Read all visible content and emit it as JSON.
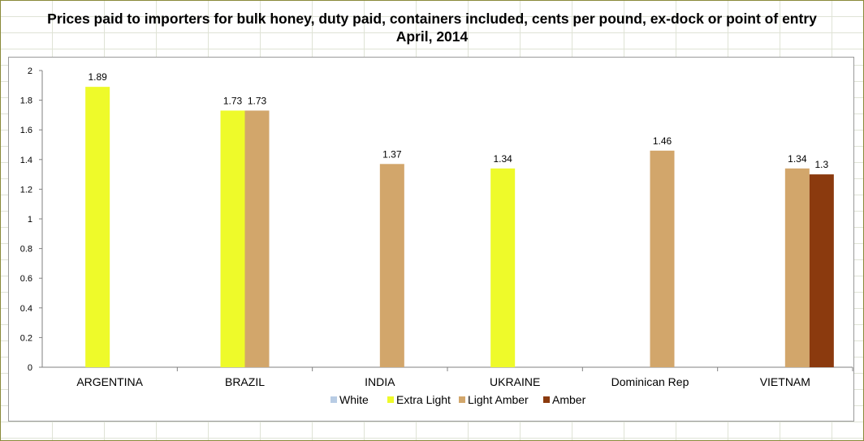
{
  "chart_data": {
    "type": "bar",
    "title_lines": [
      "Prices paid to importers for bulk honey, duty paid, containers included, cents per pound, ex-dock or point of entry",
      "April, 2014"
    ],
    "categories": [
      "ARGENTINA",
      "BRAZIL",
      "INDIA",
      "UKRAINE",
      "Dominican Rep",
      "VIETNAM"
    ],
    "series": [
      {
        "name": "White",
        "color": "#b8cce4",
        "values": [
          null,
          null,
          null,
          null,
          null,
          null
        ]
      },
      {
        "name": "Extra Light",
        "color": "#eefa2a",
        "values": [
          1.89,
          1.73,
          null,
          1.34,
          null,
          null
        ]
      },
      {
        "name": "Light Amber",
        "color": "#d2a66b",
        "values": [
          null,
          1.73,
          1.37,
          null,
          1.46,
          1.34
        ]
      },
      {
        "name": "Amber",
        "color": "#8b3a0e",
        "values": [
          null,
          null,
          null,
          null,
          null,
          1.3
        ]
      }
    ],
    "ylim": [
      0,
      2
    ],
    "yticks": [
      "0",
      "0.2",
      "0.4",
      "0.6",
      "0.8",
      "1",
      "1.2",
      "1.4",
      "1.6",
      "1.8",
      "2"
    ],
    "xlabel": "",
    "ylabel": "",
    "grid": false,
    "legend_position": "bottom"
  }
}
